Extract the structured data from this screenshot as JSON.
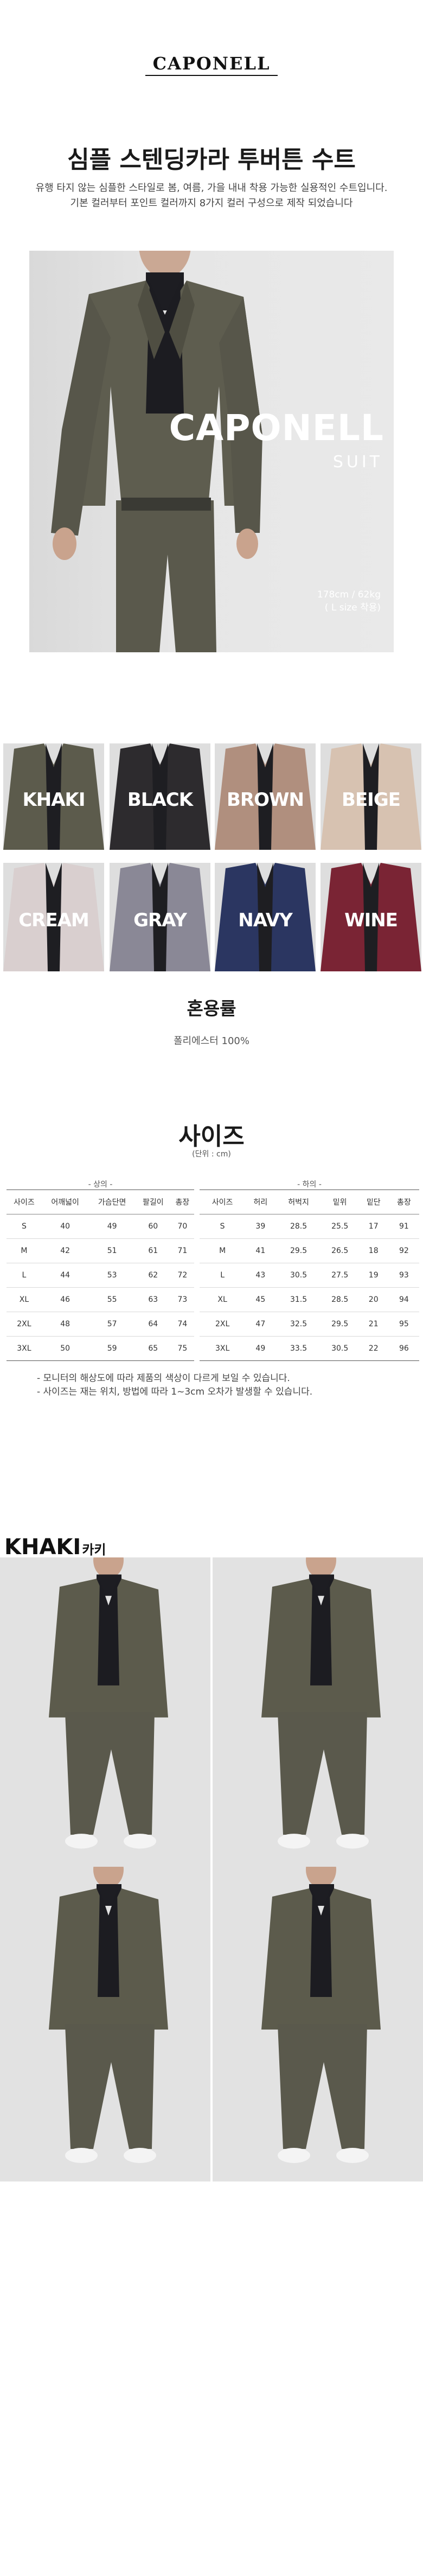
{
  "header": {
    "brand": "CAPONELL",
    "title": "심플 스텐딩카라 투버튼 수트",
    "desc_line1": "유행 타지 않는 심플한 스타일로 봄, 여름, 가을 내내 착용 가능한 실용적인 수트입니다.",
    "desc_line2": "기본 컬러부터 포인트 컬러까지 8가지 컬러 구성으로 제작 되었습니다"
  },
  "hero": {
    "brand": "CAPONELL",
    "sub": "SUIT",
    "fit_line1": "178cm / 62kg",
    "fit_line2": "( L size 착용)"
  },
  "colors": [
    {
      "name": "KHAKI",
      "hex": "#5c5b4c"
    },
    {
      "name": "BLACK",
      "hex": "#2d2b2e"
    },
    {
      "name": "BROWN",
      "hex": "#b08f7e"
    },
    {
      "name": "BEIGE",
      "hex": "#d7c2b1"
    },
    {
      "name": "CREAM",
      "hex": "#d9cfcf"
    },
    {
      "name": "GRAY",
      "hex": "#8a8896"
    },
    {
      "name": "NAVY",
      "hex": "#2b3661"
    },
    {
      "name": "WINE",
      "hex": "#7a2434"
    }
  ],
  "material": {
    "title": "혼용률",
    "value": "폴리에스터 100%"
  },
  "size": {
    "title": "사이즈",
    "unit": "(단위 : cm)",
    "top_group": "- 상의 -",
    "bottom_group": "- 하의 -",
    "top_headers": [
      "사이즈",
      "어깨넓이",
      "가슴단면",
      "팔길이",
      "총장"
    ],
    "top_rows": [
      [
        "S",
        "40",
        "49",
        "60",
        "70"
      ],
      [
        "M",
        "42",
        "51",
        "61",
        "71"
      ],
      [
        "L",
        "44",
        "53",
        "62",
        "72"
      ],
      [
        "XL",
        "46",
        "55",
        "63",
        "73"
      ],
      [
        "2XL",
        "48",
        "57",
        "64",
        "74"
      ],
      [
        "3XL",
        "50",
        "59",
        "65",
        "75"
      ]
    ],
    "bottom_headers": [
      "사이즈",
      "허리",
      "허벅지",
      "밑위",
      "밑단",
      "총장"
    ],
    "bottom_rows": [
      [
        "S",
        "39",
        "28.5",
        "25.5",
        "17",
        "91"
      ],
      [
        "M",
        "41",
        "29.5",
        "26.5",
        "18",
        "92"
      ],
      [
        "L",
        "43",
        "30.5",
        "27.5",
        "19",
        "93"
      ],
      [
        "XL",
        "45",
        "31.5",
        "28.5",
        "20",
        "94"
      ],
      [
        "2XL",
        "47",
        "32.5",
        "29.5",
        "21",
        "95"
      ],
      [
        "3XL",
        "49",
        "33.5",
        "30.5",
        "22",
        "96"
      ]
    ],
    "note1": "- 모니터의 해상도에 따라 제품의 색상이 다르게 보일 수 있습니다.",
    "note2": "- 사이즈는 재는 위치, 방법에 따라 1~3cm 오차가 발생할 수 있습니다."
  },
  "khaki": {
    "heading": "KHAKI",
    "heading_kr": "카키"
  }
}
